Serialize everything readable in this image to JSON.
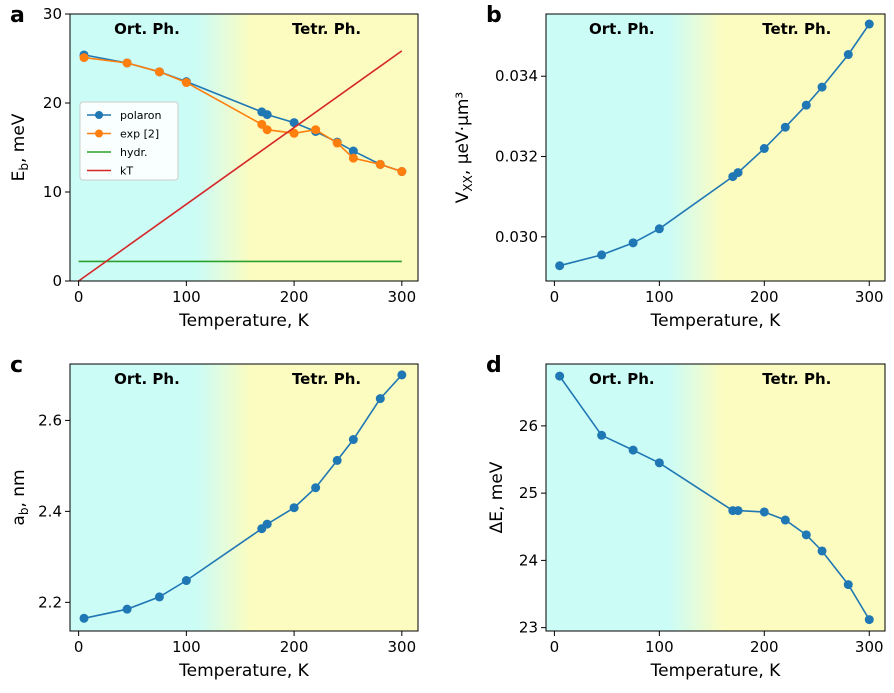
{
  "colors": {
    "ortho_bg": "#ccfcf6",
    "tetra_bg": "#fcfcc0",
    "polaron": "#1f77b4",
    "exp": "#ff7f0e",
    "hydr": "#2ca02c",
    "kT": "#d62728"
  },
  "chart_data": [
    {
      "id": "a",
      "type": "line",
      "panel_label": "a",
      "phase_labels": [
        "Ort. Ph.",
        "Tetr. Ph."
      ],
      "xlabel": "Temperature, K",
      "ylabel": "E_b, meV",
      "xlim": [
        -8,
        315
      ],
      "ylim": [
        0,
        30
      ],
      "xticks": [
        0,
        100,
        200,
        300
      ],
      "yticks": [
        0,
        10,
        20,
        30
      ],
      "legend_position": "center-left",
      "series": [
        {
          "name": "polaron",
          "color": "#1f77b4",
          "marker": true,
          "x": [
            5,
            45,
            75,
            100,
            170,
            175,
            200,
            220,
            240,
            255,
            280,
            300
          ],
          "y": [
            25.4,
            24.5,
            23.5,
            22.4,
            19.0,
            18.7,
            17.8,
            16.8,
            15.6,
            14.6,
            13.1,
            12.3
          ]
        },
        {
          "name": "exp [2]",
          "color": "#ff7f0e",
          "marker": true,
          "x": [
            5,
            45,
            75,
            100,
            170,
            175,
            200,
            220,
            240,
            255,
            280,
            300
          ],
          "y": [
            25.1,
            24.5,
            23.5,
            22.3,
            17.6,
            17.0,
            16.6,
            17.0,
            15.5,
            13.8,
            13.1,
            12.3
          ]
        },
        {
          "name": "hydr.",
          "color": "#2ca02c",
          "marker": false,
          "x": [
            0,
            300
          ],
          "y": [
            2.2,
            2.2
          ]
        },
        {
          "name": "kT",
          "color": "#d62728",
          "marker": false,
          "x": [
            0,
            300
          ],
          "y": [
            0,
            25.85
          ]
        }
      ]
    },
    {
      "id": "b",
      "type": "line",
      "panel_label": "b",
      "phase_labels": [
        "Ort. Ph.",
        "Tetr. Ph."
      ],
      "xlabel": "Temperature, K",
      "ylabel": "V_XX, μeV·μm³",
      "xlim": [
        -8,
        315
      ],
      "ylim": [
        0.0289,
        0.03555
      ],
      "xticks": [
        0,
        100,
        200,
        300
      ],
      "yticks": [
        0.03,
        0.032,
        0.034
      ],
      "ytick_labels": [
        "0.030",
        "0.032",
        "0.034"
      ],
      "series": [
        {
          "name": "",
          "color": "#1f77b4",
          "marker": true,
          "x": [
            5,
            45,
            75,
            100,
            170,
            175,
            200,
            220,
            240,
            255,
            280,
            300
          ],
          "y": [
            0.02928,
            0.02955,
            0.02985,
            0.0302,
            0.0315,
            0.0316,
            0.0322,
            0.03273,
            0.03328,
            0.03373,
            0.03454,
            0.0353
          ]
        }
      ]
    },
    {
      "id": "c",
      "type": "line",
      "panel_label": "c",
      "phase_labels": [
        "Ort. Ph.",
        "Tetr. Ph."
      ],
      "xlabel": "Temperature, K",
      "ylabel": "a_b, nm",
      "xlim": [
        -8,
        315
      ],
      "ylim": [
        2.137,
        2.724
      ],
      "xticks": [
        0,
        100,
        200,
        300
      ],
      "yticks": [
        2.2,
        2.4,
        2.6
      ],
      "ytick_labels": [
        "2.2",
        "2.4",
        "2.6"
      ],
      "series": [
        {
          "name": "",
          "color": "#1f77b4",
          "marker": true,
          "x": [
            5,
            45,
            75,
            100,
            170,
            175,
            200,
            220,
            240,
            255,
            280,
            300
          ],
          "y": [
            2.165,
            2.185,
            2.212,
            2.248,
            2.362,
            2.372,
            2.408,
            2.452,
            2.512,
            2.558,
            2.648,
            2.7
          ]
        }
      ]
    },
    {
      "id": "d",
      "type": "line",
      "panel_label": "d",
      "phase_labels": [
        "Ort. Ph.",
        "Tetr. Ph."
      ],
      "xlabel": "Temperature, K",
      "ylabel": "ΔE, meV",
      "xlim": [
        -8,
        315
      ],
      "ylim": [
        22.95,
        26.92
      ],
      "xticks": [
        0,
        100,
        200,
        300
      ],
      "yticks": [
        23,
        24,
        25,
        26
      ],
      "series": [
        {
          "name": "",
          "color": "#1f77b4",
          "marker": true,
          "x": [
            5,
            45,
            75,
            100,
            170,
            175,
            200,
            220,
            240,
            255,
            280,
            300
          ],
          "y": [
            26.74,
            25.86,
            25.64,
            25.45,
            24.74,
            24.74,
            24.72,
            24.6,
            24.38,
            24.14,
            23.64,
            23.12
          ]
        }
      ]
    }
  ]
}
